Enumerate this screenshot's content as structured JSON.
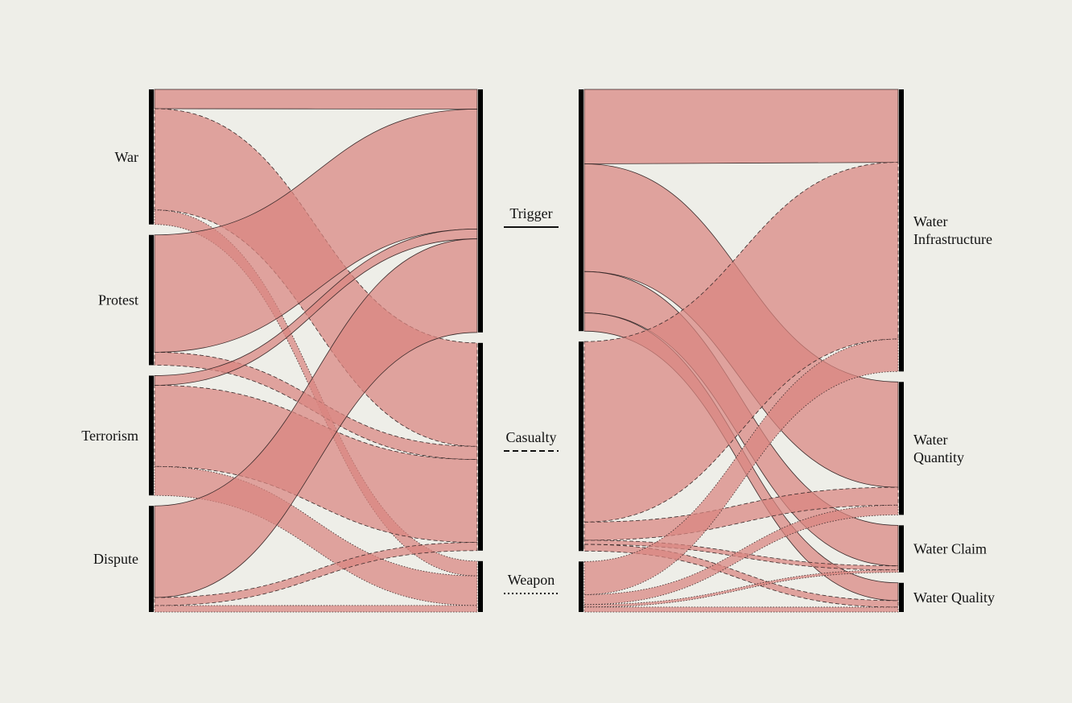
{
  "left_nodes": [
    {
      "id": "war",
      "label": "War"
    },
    {
      "id": "protest",
      "label": "Protest"
    },
    {
      "id": "terrorism",
      "label": "Terrorism"
    },
    {
      "id": "dispute",
      "label": "Dispute"
    }
  ],
  "middle_nodes": [
    {
      "id": "trigger",
      "label": "Trigger",
      "line_style": "solid"
    },
    {
      "id": "casualty",
      "label": "Casualty",
      "line_style": "dashed"
    },
    {
      "id": "weapon",
      "label": "Weapon",
      "line_style": "dotted"
    }
  ],
  "right_nodes": [
    {
      "id": "infrastructure",
      "label": [
        "Water",
        "Infrastructure"
      ]
    },
    {
      "id": "quantity",
      "label": [
        "Water",
        "Quantity"
      ]
    },
    {
      "id": "claim",
      "label": [
        "Water Claim"
      ]
    },
    {
      "id": "quality",
      "label": [
        "Water Quality"
      ]
    }
  ],
  "colors": {
    "background": "#eeeee8",
    "band": "#d9857f",
    "bar": "#000000"
  },
  "flows_left": [
    {
      "source": "war",
      "target": "trigger",
      "value": 24
    },
    {
      "source": "war",
      "target": "casualty",
      "value": 126
    },
    {
      "source": "war",
      "target": "weapon",
      "value": 18
    },
    {
      "source": "protest",
      "target": "trigger",
      "value": 146
    },
    {
      "source": "protest",
      "target": "casualty",
      "value": 16
    },
    {
      "source": "terrorism",
      "target": "trigger",
      "value": 12
    },
    {
      "source": "terrorism",
      "target": "casualty",
      "value": 101
    },
    {
      "source": "terrorism",
      "target": "weapon",
      "value": 36
    },
    {
      "source": "dispute",
      "target": "trigger",
      "value": 114
    },
    {
      "source": "dispute",
      "target": "casualty",
      "value": 10
    },
    {
      "source": "dispute",
      "target": "weapon",
      "value": 8
    }
  ],
  "flows_right": [
    {
      "source": "trigger",
      "target": "infrastructure",
      "value": 90
    },
    {
      "source": "trigger",
      "target": "quantity",
      "value": 130
    },
    {
      "source": "trigger",
      "target": "claim",
      "value": 50
    },
    {
      "source": "trigger",
      "target": "quality",
      "value": 22
    },
    {
      "source": "casualty",
      "target": "infrastructure",
      "value": 218
    },
    {
      "source": "casualty",
      "target": "quantity",
      "value": 22
    },
    {
      "source": "casualty",
      "target": "claim",
      "value": 5
    },
    {
      "source": "casualty",
      "target": "quality",
      "value": 8
    },
    {
      "source": "weapon",
      "target": "infrastructure",
      "value": 40
    },
    {
      "source": "weapon",
      "target": "quantity",
      "value": 12
    },
    {
      "source": "weapon",
      "target": "claim",
      "value": 3
    },
    {
      "source": "weapon",
      "target": "quality",
      "value": 6
    }
  ]
}
